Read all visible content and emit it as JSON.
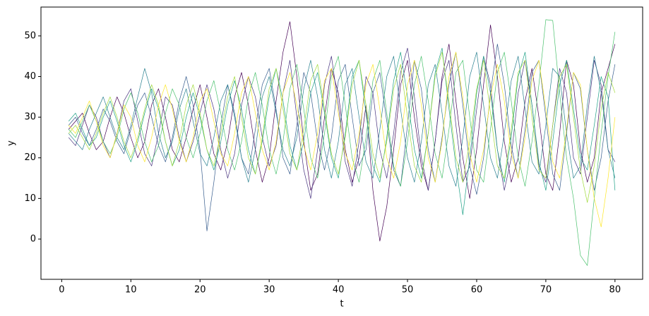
{
  "chart_data": {
    "type": "line",
    "x_label": "t",
    "y_label": "y",
    "xlim": [
      -3,
      84
    ],
    "ylim": [
      -9.9,
      57.1
    ],
    "xticks": [
      0,
      10,
      20,
      30,
      40,
      50,
      60,
      70,
      80
    ],
    "yticks": [
      0,
      10,
      20,
      30,
      40,
      50
    ],
    "grid": false,
    "x": [
      1,
      2,
      3,
      4,
      5,
      6,
      7,
      8,
      9,
      10,
      11,
      12,
      13,
      14,
      15,
      16,
      17,
      18,
      19,
      20,
      21,
      22,
      23,
      24,
      25,
      26,
      27,
      28,
      29,
      30,
      31,
      32,
      33,
      34,
      35,
      36,
      37,
      38,
      39,
      40,
      41,
      42,
      43,
      44,
      45,
      46,
      47,
      48,
      49,
      50,
      51,
      52,
      53,
      54,
      55,
      56,
      57,
      58,
      59,
      60,
      61,
      62,
      63,
      64,
      65,
      66,
      67,
      68,
      69,
      70,
      71,
      72,
      73,
      74,
      75,
      76,
      77,
      78,
      79,
      80
    ],
    "series": [
      {
        "color": "#440154",
        "values": [
          27,
          29,
          31,
          26,
          22,
          24,
          30,
          35,
          31,
          25,
          20,
          24,
          33,
          37,
          30,
          22,
          19,
          25,
          32,
          38,
          30,
          21,
          17,
          24,
          35,
          41,
          33,
          22,
          14,
          20,
          34,
          46,
          53.5,
          40,
          24,
          12,
          16,
          30,
          42,
          36,
          22,
          14,
          20,
          33,
          12,
          -0.5,
          8,
          22,
          38,
          44,
          30,
          18,
          12,
          24,
          40,
          48,
          34,
          20,
          10,
          22,
          38,
          52.7,
          40,
          24,
          14,
          20,
          34,
          42,
          30,
          16,
          12,
          26,
          44,
          38,
          22,
          14,
          20,
          36,
          42,
          48
        ]
      },
      {
        "color": "#46327e",
        "values": [
          25,
          23,
          28,
          33,
          30,
          24,
          20,
          26,
          34,
          37,
          29,
          21,
          18,
          26,
          35,
          33,
          25,
          19,
          24,
          31,
          38,
          32,
          22,
          15,
          21,
          33,
          40,
          35,
          25,
          18,
          23,
          36,
          44,
          30,
          17,
          10,
          22,
          38,
          45,
          33,
          19,
          13,
          24,
          40,
          36,
          22,
          15,
          26,
          41,
          47,
          35,
          20,
          12,
          24,
          39,
          44,
          28,
          14,
          18,
          32,
          45,
          38,
          22,
          12,
          20,
          36,
          44,
          33,
          18,
          14,
          28,
          42,
          36,
          20,
          16,
          30,
          44,
          38,
          22,
          19
        ]
      },
      {
        "color": "#365c8d",
        "values": [
          28,
          30,
          26,
          23,
          27,
          32,
          29,
          24,
          21,
          27,
          33,
          36,
          30,
          23,
          19,
          25,
          34,
          40,
          33,
          22,
          2,
          14,
          28,
          38,
          31,
          20,
          16,
          27,
          38,
          42,
          32,
          20,
          16,
          28,
          41,
          36,
          24,
          17,
          25,
          39,
          43,
          30,
          18,
          22,
          36,
          41,
          29,
          17,
          13,
          28,
          44,
          37,
          22,
          14,
          25,
          38,
          46,
          33,
          18,
          11,
          20,
          36,
          48,
          38,
          23,
          15,
          27,
          41,
          44,
          30,
          16,
          12,
          26,
          41,
          37,
          22,
          12,
          20,
          34,
          43
        ]
      },
      {
        "color": "#277f8e",
        "values": [
          26,
          24,
          22,
          27,
          31,
          35,
          30,
          25,
          22,
          28,
          35,
          42,
          36,
          26,
          20,
          24,
          32,
          37,
          29,
          21,
          18,
          25,
          34,
          38,
          30,
          20,
          14,
          22,
          35,
          40,
          31,
          22,
          18,
          25,
          37,
          44,
          35,
          22,
          15,
          24,
          38,
          42,
          30,
          19,
          15,
          27,
          40,
          45,
          32,
          20,
          14,
          24,
          38,
          43,
          31,
          18,
          13,
          25,
          40,
          46,
          33,
          20,
          15,
          26,
          39,
          45,
          32,
          19,
          16,
          28,
          42,
          40,
          26,
          15,
          18,
          33,
          45,
          36,
          22,
          15
        ]
      },
      {
        "color": "#1fa187",
        "values": [
          29,
          31,
          27,
          23,
          25,
          30,
          34,
          29,
          23,
          19,
          24,
          31,
          37,
          32,
          24,
          18,
          22,
          30,
          36,
          30,
          22,
          17,
          24,
          33,
          39,
          32,
          22,
          16,
          24,
          35,
          42,
          34,
          23,
          17,
          24,
          36,
          41,
          31,
          20,
          15,
          26,
          40,
          44,
          31,
          18,
          14,
          25,
          39,
          46,
          35,
          22,
          15,
          26,
          41,
          47,
          32,
          18,
          6,
          20,
          36,
          45,
          36,
          22,
          14,
          25,
          40,
          46,
          33,
          19,
          12,
          24,
          38,
          44,
          32,
          20,
          17,
          28,
          40,
          35,
          12
        ]
      },
      {
        "color": "#4ac16d",
        "values": [
          27,
          25,
          29,
          33,
          29,
          24,
          21,
          25,
          32,
          36,
          31,
          24,
          19,
          23,
          31,
          37,
          33,
          25,
          20,
          26,
          34,
          39,
          31,
          22,
          17,
          24,
          35,
          41,
          33,
          22,
          16,
          24,
          37,
          43,
          32,
          20,
          15,
          26,
          40,
          45,
          33,
          20,
          14,
          25,
          39,
          44,
          31,
          18,
          13,
          24,
          38,
          45,
          34,
          21,
          15,
          27,
          41,
          44,
          30,
          17,
          14,
          27,
          41,
          46,
          34,
          20,
          13,
          24,
          38,
          54,
          53.8,
          36,
          20,
          10,
          -4,
          -6.5,
          10,
          26,
          40,
          51
        ]
      },
      {
        "color": "#a0da39",
        "values": [
          26,
          28,
          25,
          22,
          26,
          31,
          35,
          30,
          24,
          20,
          25,
          32,
          38,
          33,
          24,
          18,
          24,
          33,
          38,
          31,
          22,
          18,
          26,
          35,
          40,
          30,
          20,
          16,
          25,
          37,
          42,
          32,
          21,
          17,
          27,
          39,
          43,
          32,
          21,
          16,
          25,
          38,
          44,
          33,
          21,
          15,
          24,
          37,
          43,
          30,
          18,
          14,
          26,
          40,
          46,
          34,
          20,
          14,
          24,
          37,
          44,
          31,
          18,
          15,
          27,
          41,
          44,
          30,
          17,
          15,
          28,
          40,
          43,
          30,
          17,
          9,
          18,
          32,
          41,
          36
        ]
      },
      {
        "color": "#fde725",
        "values": [
          28,
          26,
          30,
          34,
          29,
          23,
          20,
          26,
          33,
          30,
          23,
          19,
          25,
          33,
          38,
          32,
          24,
          19,
          25,
          34,
          37,
          29,
          21,
          18,
          26,
          36,
          40,
          31,
          22,
          17,
          24,
          36,
          41,
          33,
          23,
          17,
          26,
          39,
          42,
          31,
          21,
          17,
          26,
          38,
          43,
          32,
          20,
          15,
          24,
          38,
          44,
          33,
          20,
          14,
          24,
          40,
          46,
          35,
          21,
          14,
          22,
          35,
          43,
          34,
          21,
          15,
          25,
          39,
          44,
          32,
          19,
          15,
          27,
          41,
          38,
          22,
          10,
          3,
          15,
          30
        ]
      }
    ]
  }
}
